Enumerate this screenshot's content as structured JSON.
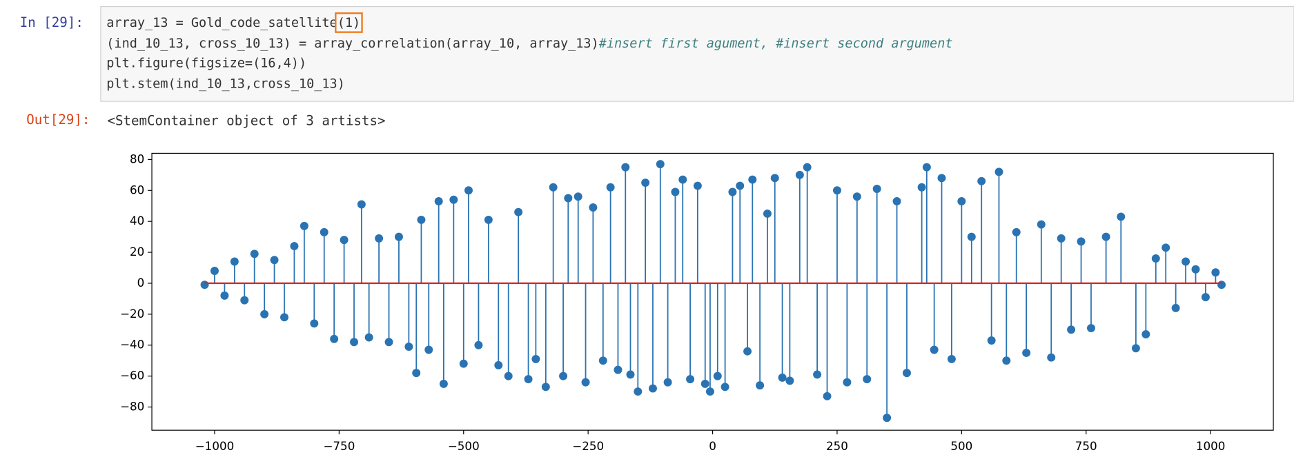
{
  "notebook": {
    "in_prompt": "In  [29]:",
    "out_prompt": "Out[29]:",
    "code": {
      "line1": "array_13 = Gold_code_satellite",
      "line1_highlight": "(1)",
      "line2": "(ind_10_13, cross_10_13) = array_correlation(array_10, array_13)",
      "line2_comment": "#insert first agument, #insert second argument",
      "line3": "plt.figure(figsize=(16,4))",
      "line4": "plt.stem(ind_10_13,cross_10_13)"
    },
    "output_text": "<StemContainer object of 3 artists>"
  },
  "chart_data": {
    "type": "stem",
    "color": "#2a73b3",
    "baseline_color": "#d62728",
    "xlim": [
      -1126,
      1126
    ],
    "ylim": [
      -95,
      84
    ],
    "xticks": [
      {
        "value": -1000,
        "label": "−1000"
      },
      {
        "value": -750,
        "label": "−750"
      },
      {
        "value": -500,
        "label": "−500"
      },
      {
        "value": -250,
        "label": "−250"
      },
      0,
      250,
      500,
      750,
      1000
    ],
    "yticks": [
      {
        "value": -80,
        "label": "−80"
      },
      {
        "value": -60,
        "label": "−60"
      },
      {
        "value": -40,
        "label": "−40"
      },
      {
        "value": -20,
        "label": "−20"
      },
      0,
      20,
      40,
      60,
      80
    ],
    "x": [
      -1020,
      -1000,
      -980,
      -960,
      -940,
      -920,
      -900,
      -880,
      -860,
      -840,
      -820,
      -800,
      -780,
      -760,
      -740,
      -720,
      -705,
      -690,
      -670,
      -650,
      -630,
      -610,
      -595,
      -585,
      -570,
      -550,
      -540,
      -520,
      -500,
      -490,
      -470,
      -450,
      -430,
      -410,
      -390,
      -370,
      -355,
      -335,
      -320,
      -300,
      -290,
      -270,
      -255,
      -240,
      -220,
      -205,
      -190,
      -175,
      -165,
      -150,
      -135,
      -120,
      -105,
      -90,
      -75,
      -60,
      -45,
      -30,
      -15,
      -5,
      10,
      25,
      40,
      55,
      70,
      80,
      95,
      110,
      125,
      140,
      155,
      175,
      190,
      210,
      230,
      250,
      270,
      290,
      310,
      330,
      350,
      370,
      390,
      420,
      430,
      445,
      460,
      480,
      500,
      520,
      540,
      560,
      575,
      590,
      610,
      630,
      660,
      680,
      700,
      720,
      740,
      760,
      790,
      820,
      850,
      870,
      890,
      910,
      930,
      950,
      970,
      990,
      1010,
      1022
    ],
    "values": [
      -1,
      8,
      -8,
      14,
      -11,
      19,
      -20,
      15,
      -22,
      24,
      37,
      -26,
      33,
      -36,
      28,
      -38,
      51,
      -35,
      29,
      -38,
      30,
      -41,
      -58,
      41,
      -43,
      53,
      -65,
      54,
      -52,
      60,
      -40,
      41,
      -53,
      -60,
      46,
      -62,
      -49,
      -67,
      62,
      -60,
      55,
      56,
      -64,
      49,
      -50,
      62,
      -56,
      75,
      -59,
      -70,
      65,
      -68,
      77,
      -64,
      59,
      67,
      -62,
      63,
      -65,
      -70,
      -60,
      -67,
      59,
      63,
      -44,
      67,
      -66,
      45,
      68,
      -61,
      -63,
      70,
      75,
      -59,
      -73,
      60,
      -64,
      56,
      -62,
      61,
      -87,
      53,
      -58,
      62,
      75,
      -43,
      68,
      -49,
      53,
      30,
      66,
      -37,
      72,
      -50,
      33,
      -45,
      38,
      -48,
      29,
      -30,
      27,
      -29,
      30,
      43,
      -42,
      -33,
      16,
      23,
      -16,
      14,
      9,
      -9,
      7,
      -1
    ]
  }
}
